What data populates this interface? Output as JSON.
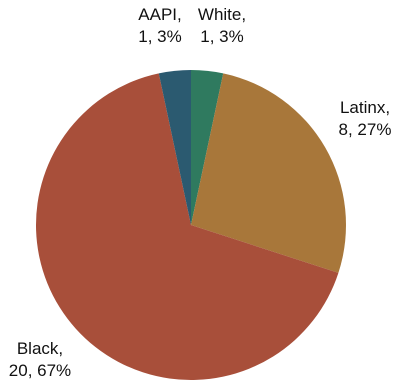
{
  "chart_data": {
    "type": "pie",
    "title": "",
    "start_angle_deg": 0,
    "direction": "clockwise",
    "slices": [
      {
        "name": "White",
        "count": 1,
        "percent": "3%",
        "color": "#2f7a5f",
        "label_line1": "White,",
        "label_line2": "1, 3%"
      },
      {
        "name": "Latinx",
        "count": 8,
        "percent": "27%",
        "color": "#a8773a",
        "label_line1": "Latinx,",
        "label_line2": "8, 27%"
      },
      {
        "name": "Black",
        "count": 20,
        "percent": "67%",
        "color": "#a84f3a",
        "label_line1": "Black,",
        "label_line2": "20, 67%"
      },
      {
        "name": "AAPI",
        "count": 1,
        "percent": "3%",
        "color": "#2b5a70",
        "label_line1": "AAPI,",
        "label_line2": "1, 3%"
      }
    ]
  }
}
